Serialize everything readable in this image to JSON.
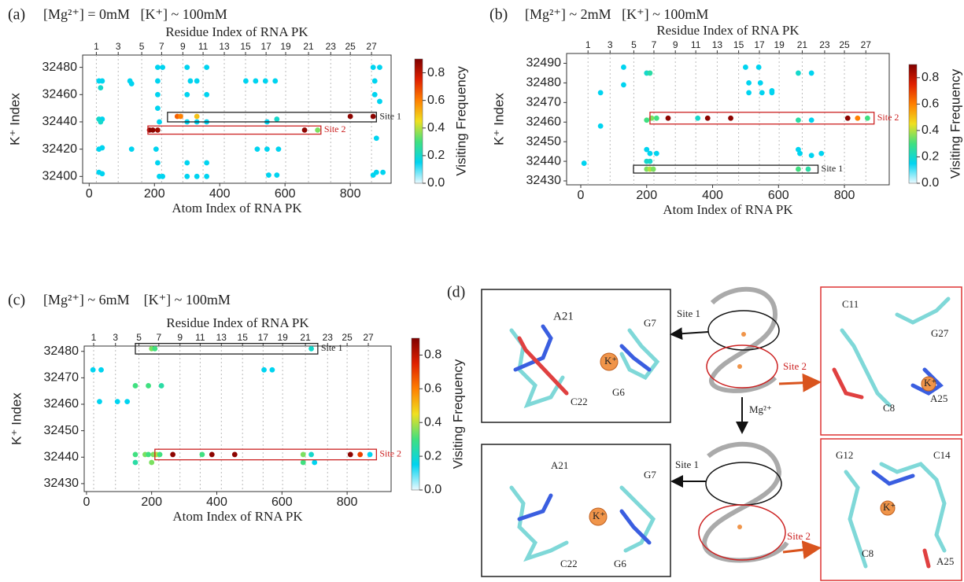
{
  "chart_data": [
    {
      "type": "scatter",
      "panel_label": "(a)",
      "title": "[Mg²⁺] = 0mM   [K⁺] ~ 100mM",
      "x_label": "Atom Index of RNA PK",
      "x2_label": "Residue Index of RNA PK",
      "y_label": "K⁺ Index",
      "xlim": [
        -20,
        925
      ],
      "ylim": [
        32395,
        32489
      ],
      "xticks": [
        0,
        200,
        400,
        600,
        800
      ],
      "yticks": [
        32400,
        32420,
        32440,
        32460,
        32480
      ],
      "x2ticks": [
        {
          "value": 22,
          "label": "1"
        },
        {
          "value": 89,
          "label": "3"
        },
        {
          "value": 161,
          "label": "5"
        },
        {
          "value": 222,
          "label": "7"
        },
        {
          "value": 287,
          "label": "9"
        },
        {
          "value": 349,
          "label": "11"
        },
        {
          "value": 414,
          "label": "13"
        },
        {
          "value": 479,
          "label": "15"
        },
        {
          "value": 542,
          "label": "17"
        },
        {
          "value": 602,
          "label": "19"
        },
        {
          "value": 672,
          "label": "21"
        },
        {
          "value": 740,
          "label": "23"
        },
        {
          "value": 800,
          "label": "25"
        },
        {
          "value": 865,
          "label": "27"
        }
      ],
      "x": [
        30,
        40,
        35,
        30,
        40,
        35,
        30,
        40,
        30,
        40,
        125,
        130,
        130,
        210,
        225,
        210,
        210,
        210,
        215,
        205,
        210,
        215,
        225,
        300,
        310,
        300,
        300,
        300,
        300,
        330,
        330,
        330,
        360,
        360,
        360,
        360,
        360,
        480,
        510,
        515,
        540,
        545,
        545,
        550,
        570,
        575,
        580,
        575,
        870,
        890,
        875,
        875,
        890,
        880,
        880,
        900,
        870,
        270,
        280,
        330,
        800,
        870,
        185,
        195,
        210,
        660,
        700
      ],
      "y": [
        32470,
        32470,
        32465,
        32442,
        32442,
        32440,
        32420,
        32421,
        32403,
        32402,
        32470,
        32468,
        32420,
        32480,
        32480,
        32470,
        32460,
        32450,
        32440,
        32420,
        32410,
        32400,
        32400,
        32480,
        32470,
        32460,
        32440,
        32410,
        32400,
        32470,
        32440,
        32400,
        32480,
        32460,
        32440,
        32410,
        32400,
        32470,
        32470,
        32420,
        32470,
        32440,
        32420,
        32401,
        32470,
        32442,
        32420,
        32401,
        32480,
        32480,
        32470,
        32460,
        32455,
        32428,
        32403,
        32403,
        32401,
        32444,
        32444,
        32444,
        32444,
        32444,
        32434,
        32434,
        32434,
        32434,
        32434
      ],
      "values": [
        0.15,
        0.15,
        0.2,
        0.2,
        0.15,
        0.2,
        0.15,
        0.15,
        0.15,
        0.15,
        0.15,
        0.15,
        0.15,
        0.15,
        0.15,
        0.15,
        0.15,
        0.15,
        0.15,
        0.15,
        0.15,
        0.15,
        0.15,
        0.15,
        0.15,
        0.15,
        0.15,
        0.15,
        0.15,
        0.15,
        0.15,
        0.15,
        0.15,
        0.15,
        0.15,
        0.15,
        0.15,
        0.15,
        0.15,
        0.15,
        0.15,
        0.15,
        0.15,
        0.15,
        0.15,
        0.2,
        0.15,
        0.15,
        0.15,
        0.15,
        0.15,
        0.15,
        0.15,
        0.15,
        0.15,
        0.15,
        0.15,
        0.65,
        0.6,
        0.5,
        0.88,
        0.88,
        0.88,
        0.88,
        0.85,
        0.88,
        0.35
      ],
      "annotations": [
        {
          "text": "Site 1",
          "color": "#222222",
          "xrange": [
            240,
            880
          ],
          "yrange": [
            32440,
            32447
          ]
        },
        {
          "text": "Site 2",
          "color": "#cc2222",
          "xrange": [
            180,
            710
          ],
          "yrange": [
            32431,
            32437
          ]
        }
      ],
      "colorbar": {
        "label": "Visiting Frequency",
        "lim": [
          0,
          0.9
        ],
        "ticks": [
          {
            "value": 0,
            "label": "0.0"
          },
          0.2,
          0.4,
          0.6,
          0.8
        ],
        "colors": [
          "#eaf9ff",
          "#00d4f0",
          "#40e080",
          "#f0e020",
          "#ff8000",
          "#e02000",
          "#800000"
        ]
      }
    },
    {
      "type": "scatter",
      "panel_label": "(b)",
      "title": "[Mg²⁺] ~ 2mM   [K⁺] ~ 100mM",
      "x_label": "Atom Index of RNA PK",
      "x2_label": "Residue Index of RNA PK",
      "y_label": "K⁺ Index",
      "xlim": [
        -43,
        936
      ],
      "ylim": [
        32428,
        32495
      ],
      "xticks": [
        0,
        200,
        400,
        600,
        800
      ],
      "yticks": [
        32430,
        32440,
        32450,
        32460,
        32470,
        32480,
        32490
      ],
      "x2ticks": [
        {
          "value": 22,
          "label": "1"
        },
        {
          "value": 89,
          "label": "3"
        },
        {
          "value": 161,
          "label": "5"
        },
        {
          "value": 222,
          "label": "7"
        },
        {
          "value": 287,
          "label": "9"
        },
        {
          "value": 349,
          "label": "11"
        },
        {
          "value": 414,
          "label": "13"
        },
        {
          "value": 479,
          "label": "15"
        },
        {
          "value": 542,
          "label": "17"
        },
        {
          "value": 602,
          "label": "19"
        },
        {
          "value": 672,
          "label": "21"
        },
        {
          "value": 740,
          "label": "23"
        },
        {
          "value": 800,
          "label": "25"
        },
        {
          "value": 865,
          "label": "27"
        }
      ],
      "x": [
        10,
        60,
        60,
        130,
        130,
        200,
        210,
        200,
        210,
        200,
        210,
        230,
        200,
        210,
        220,
        200,
        230,
        215,
        265,
        355,
        385,
        455,
        500,
        540,
        510,
        510,
        545,
        550,
        580,
        580,
        660,
        700,
        660,
        700,
        660,
        665,
        700,
        730,
        660,
        690,
        810,
        840,
        870
      ],
      "y": [
        32439,
        32475,
        32458,
        32488,
        32479,
        32485,
        32485,
        32446,
        32444,
        32440,
        32440,
        32444,
        32436,
        32436,
        32436,
        32461,
        32462,
        32462,
        32462,
        32462,
        32462,
        32462,
        32488,
        32488,
        32480,
        32475,
        32480,
        32475,
        32476,
        32475,
        32485,
        32485,
        32461,
        32461,
        32446,
        32444,
        32443,
        32444,
        32436,
        32436,
        32462,
        32462,
        32462
      ],
      "values": [
        0.15,
        0.15,
        0.15,
        0.15,
        0.15,
        0.2,
        0.25,
        0.15,
        0.15,
        0.2,
        0.2,
        0.15,
        0.35,
        0.4,
        0.35,
        0.3,
        0.3,
        0.35,
        0.88,
        0.2,
        0.88,
        0.88,
        0.15,
        0.15,
        0.15,
        0.15,
        0.15,
        0.15,
        0.15,
        0.15,
        0.2,
        0.15,
        0.25,
        0.15,
        0.15,
        0.15,
        0.15,
        0.15,
        0.3,
        0.25,
        0.88,
        0.6,
        0.3
      ],
      "annotations": [
        {
          "text": "Site 2",
          "color": "#cc2222",
          "xrange": [
            210,
            890
          ],
          "yrange": [
            32459,
            32465
          ]
        },
        {
          "text": "Site 1",
          "color": "#222222",
          "xrange": [
            160,
            720
          ],
          "yrange": [
            32434,
            32438
          ]
        }
      ],
      "colorbar": {
        "label": "Visiting Frequency",
        "lim": [
          0,
          0.9
        ],
        "ticks": [
          {
            "value": 0,
            "label": "0.0"
          },
          0.2,
          0.4,
          0.6,
          0.8
        ],
        "colors": [
          "#eaf9ff",
          "#00d4f0",
          "#40e080",
          "#f0e020",
          "#ff8000",
          "#e02000",
          "#800000"
        ]
      }
    },
    {
      "type": "scatter",
      "panel_label": "(c)",
      "title": "[Mg²⁺] ~ 6mM    [K⁺] ~ 100mM",
      "x_label": "Atom Index of RNA PK",
      "x2_label": "Residue Index of RNA PK",
      "y_label": "K⁺ Index",
      "xlim": [
        -7,
        935
      ],
      "ylim": [
        32427,
        32482
      ],
      "xticks": [
        0,
        200,
        400,
        600,
        800
      ],
      "yticks": [
        32430,
        32440,
        32450,
        32460,
        32470,
        32480
      ],
      "x2ticks": [
        {
          "value": 22,
          "label": "1"
        },
        {
          "value": 89,
          "label": "3"
        },
        {
          "value": 161,
          "label": "5"
        },
        {
          "value": 222,
          "label": "7"
        },
        {
          "value": 287,
          "label": "9"
        },
        {
          "value": 349,
          "label": "11"
        },
        {
          "value": 414,
          "label": "13"
        },
        {
          "value": 479,
          "label": "15"
        },
        {
          "value": 542,
          "label": "17"
        },
        {
          "value": 602,
          "label": "19"
        },
        {
          "value": 672,
          "label": "21"
        },
        {
          "value": 740,
          "label": "23"
        },
        {
          "value": 800,
          "label": "25"
        },
        {
          "value": 865,
          "label": "27"
        }
      ],
      "x": [
        20,
        45,
        40,
        95,
        125,
        200,
        210,
        150,
        190,
        230,
        150,
        150,
        180,
        190,
        200,
        205,
        215,
        225,
        265,
        355,
        385,
        455,
        545,
        570,
        665,
        665,
        690,
        700,
        690,
        810,
        840,
        870
      ],
      "y": [
        32473,
        32473,
        32461,
        32461,
        32461,
        32481,
        32481,
        32467,
        32467,
        32467,
        32441,
        32438,
        32441,
        32441,
        32438,
        32441,
        32441,
        32441,
        32441,
        32441,
        32441,
        32441,
        32473,
        32473,
        32441,
        32438,
        32441,
        32438,
        32481,
        32441,
        32441,
        32441
      ],
      "values": [
        0.15,
        0.15,
        0.15,
        0.15,
        0.15,
        0.35,
        0.3,
        0.3,
        0.3,
        0.25,
        0.3,
        0.25,
        0.35,
        0.3,
        0.35,
        0.35,
        0.4,
        0.3,
        0.88,
        0.3,
        0.88,
        0.88,
        0.15,
        0.15,
        0.35,
        0.3,
        0.2,
        0.15,
        0.2,
        0.88,
        0.7,
        0.15
      ],
      "annotations": [
        {
          "text": "Site 1",
          "color": "#222222",
          "xrange": [
            150,
            710
          ],
          "yrange": [
            32479,
            32483
          ]
        },
        {
          "text": "Site 2",
          "color": "#cc2222",
          "xrange": [
            210,
            890
          ],
          "yrange": [
            32439,
            32443
          ]
        }
      ],
      "colorbar": {
        "label": "Visiting Frequency",
        "lim": [
          0,
          0.9
        ],
        "ticks": [
          {
            "value": 0,
            "label": "0.0"
          },
          0.2,
          0.4,
          0.6,
          0.8
        ],
        "colors": [
          "#eaf9ff",
          "#00d4f0",
          "#40e080",
          "#f0e020",
          "#ff8000",
          "#e02000",
          "#800000"
        ]
      }
    }
  ],
  "panel_d": {
    "label": "(d)",
    "arrow_label": "Mg²⁺",
    "top_sites": [
      "Site 1",
      "Site 2"
    ],
    "bottom_sites": [
      "Site 1",
      "Site 2"
    ],
    "top_left": [
      "A21",
      "G7",
      "K⁺",
      "C22",
      "G6"
    ],
    "top_right": [
      "C11",
      "G27",
      "K⁺",
      "C8",
      "A25"
    ],
    "bottom_left": [
      "A21",
      "G7",
      "K⁺",
      "C22",
      "G6"
    ],
    "bottom_right": [
      "G12",
      "C14",
      "K⁺",
      "C8",
      "A25"
    ]
  }
}
